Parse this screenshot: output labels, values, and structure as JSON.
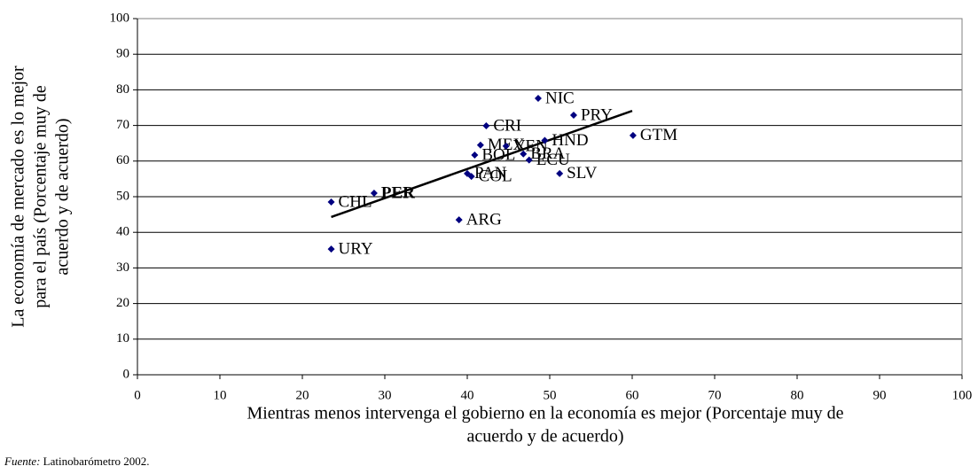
{
  "chart_data": {
    "type": "scatter",
    "xlabel": [
      "Mientras menos intervenga el gobierno en la economía es mejor (Porcentaje muy de",
      "acuerdo y de acuerdo)"
    ],
    "ylabel": [
      "La economía de mercado es lo mejor",
      "para el país (Porcentaje muy de",
      "acuerdo y de acuerdo)"
    ],
    "labels": [
      "CHL",
      "URY",
      "PER",
      "ARG",
      "PAN",
      "COL",
      "BOL",
      "MEX",
      "CRI",
      "VEN",
      "BRA",
      "ECU",
      "HND",
      "NIC",
      "PRY",
      "SLV",
      "GTM"
    ],
    "bold": [
      false,
      false,
      true,
      false,
      false,
      false,
      false,
      false,
      false,
      false,
      false,
      false,
      false,
      false,
      false,
      false,
      false
    ],
    "x": [
      23.5,
      23.5,
      28.7,
      39.0,
      40.0,
      40.5,
      40.9,
      41.6,
      42.3,
      44.7,
      46.8,
      47.5,
      49.4,
      48.6,
      52.9,
      51.2,
      60.1
    ],
    "values": [
      48.5,
      35.3,
      51.0,
      43.5,
      56.5,
      55.7,
      61.7,
      64.5,
      69.9,
      64.2,
      62.0,
      60.3,
      65.8,
      77.6,
      72.9,
      56.5,
      67.2
    ],
    "color": "#000080",
    "trendline": {
      "x": [
        23.5,
        60
      ],
      "y": [
        44.3,
        74.1
      ],
      "color": "#000000"
    },
    "xlim": [
      0,
      100
    ],
    "xticks": [
      0,
      10,
      20,
      30,
      40,
      50,
      60,
      70,
      80,
      90,
      100
    ],
    "ylim": [
      0,
      100
    ],
    "yticks": [
      0,
      10,
      20,
      30,
      40,
      50,
      60,
      70,
      80,
      90,
      100
    ],
    "grid": true,
    "footnote": {
      "prefix": "Fuente:",
      "text": "Latinobarómetro 2002."
    }
  }
}
